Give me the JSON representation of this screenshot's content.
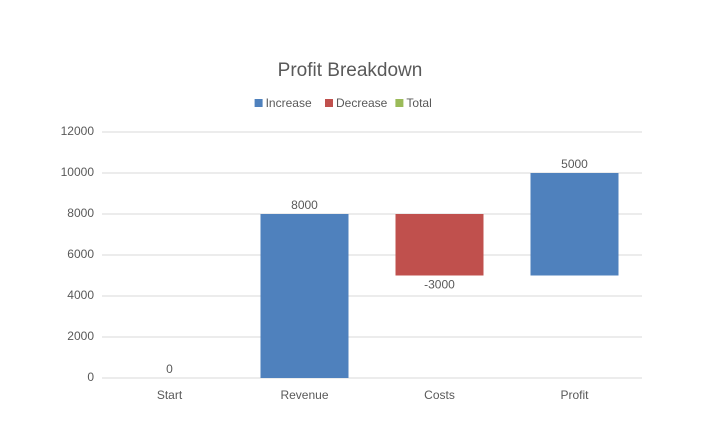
{
  "chart_data": {
    "type": "waterfall",
    "title": "Profit Breakdown",
    "categories": [
      "Start",
      "Revenue",
      "Costs",
      "Profit"
    ],
    "series": [
      {
        "name": "Increase",
        "color": "#4f81bd",
        "values": [
          null,
          8000,
          null,
          5000
        ]
      },
      {
        "name": "Decrease",
        "color": "#c0504d",
        "values": [
          null,
          null,
          -3000,
          null
        ]
      },
      {
        "name": "Total",
        "color": "#9bbb59",
        "values": [
          0,
          null,
          null,
          null
        ]
      }
    ],
    "ylim": [
      0,
      12000
    ],
    "yticks": [
      0,
      2000,
      4000,
      6000,
      8000,
      10000,
      12000
    ],
    "grid": true,
    "legend": "top"
  }
}
